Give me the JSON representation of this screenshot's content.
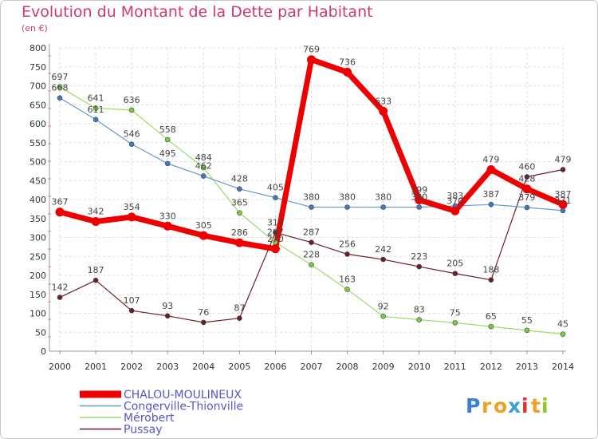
{
  "header": {
    "title": "Evolution du Montant de la Dette par Habitant",
    "unit": "(en €)"
  },
  "brand": {
    "letters": [
      {
        "ch": "P",
        "color": "#3a7fd4"
      },
      {
        "ch": "r",
        "color": "#f0a020"
      },
      {
        "ch": "o",
        "color": "#f0a020"
      },
      {
        "ch": "x",
        "color": "#3aa0d8"
      },
      {
        "ch": "i",
        "color": "#e03030"
      },
      {
        "ch": "t",
        "color": "#f0a020"
      },
      {
        "ch": "i",
        "color": "#8cc820"
      }
    ]
  },
  "chart_data": {
    "type": "line",
    "title": "Evolution du Montant de la Dette par Habitant",
    "subtitle": "(en €)",
    "x": [
      2000,
      2001,
      2002,
      2003,
      2004,
      2005,
      2006,
      2007,
      2008,
      2009,
      2010,
      2011,
      2012,
      2013,
      2014
    ],
    "ylim": [
      0,
      800
    ],
    "yticks": [
      0,
      50,
      100,
      150,
      200,
      250,
      300,
      350,
      400,
      450,
      500,
      550,
      600,
      650,
      700,
      750,
      800
    ],
    "grid": true,
    "legend_position": "bottom-left",
    "series": [
      {
        "name": "Pussay",
        "color": "#6b1f24",
        "width": 1.2,
        "point": "#6b1f24",
        "values": [
          142,
          187,
          107,
          93,
          76,
          87,
          313,
          287,
          256,
          242,
          223,
          205,
          188,
          460,
          479
        ]
      },
      {
        "name": "Mérobert",
        "color": "#99dd66",
        "width": 1.2,
        "point": "#77cc44",
        "values": [
          697,
          641,
          636,
          558,
          484,
          365,
          287,
          228,
          163,
          92,
          83,
          75,
          65,
          55,
          45
        ]
      },
      {
        "name": "Congerville-Thionville",
        "color": "#6699cc",
        "width": 1.2,
        "point": "#3d7bbf",
        "values": [
          668,
          611,
          546,
          495,
          462,
          428,
          405,
          380,
          380,
          380,
          380,
          383,
          387,
          379,
          371
        ]
      },
      {
        "name": "CHALOU-MOULINEUX",
        "color": "#ee0000",
        "width": 7,
        "point": "#ee0000",
        "values": [
          367,
          342,
          354,
          330,
          305,
          286,
          270,
          769,
          736,
          633,
          399,
          370,
          479,
          428,
          387
        ]
      }
    ]
  }
}
